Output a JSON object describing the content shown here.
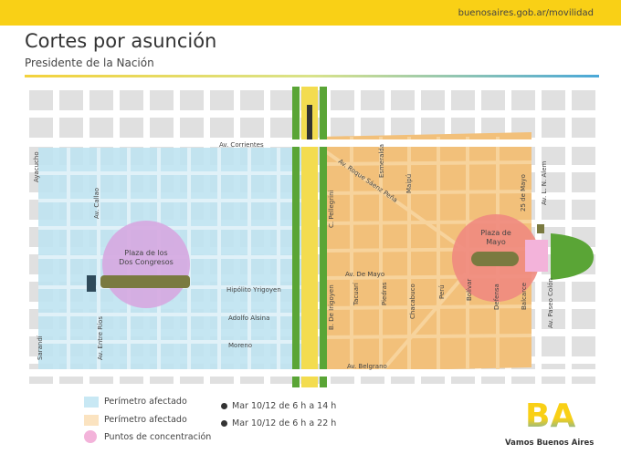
{
  "header": {
    "url": "buenosaires.gob.ar/movilidad",
    "title": "Cortes por asunción",
    "subtitle": "Presidente de la Nación"
  },
  "map": {
    "streets": {
      "corrientes": "Av. Corrientes",
      "ayacucho": "Ayacucho",
      "callao": "Av. Callao",
      "sarandi": "Sarandí",
      "entre_rios": "Av. Entre Ríos",
      "yrigoyen": "Hipólito Yrigoyen",
      "alsina": "Adolfo Alsina",
      "moreno": "Moreno",
      "saenz_pena": "Av. Roque Sáenz Peña",
      "esmeralda": "Esmeralda",
      "maipu": "Maipú",
      "pellegrini": "C. Pellegrini",
      "de_mayo": "Av. De Mayo",
      "de_irigoyen": "B. De Irigoyen",
      "tacuari": "Tacuarí",
      "piedras": "Piedras",
      "chacabuco": "Chacabuco",
      "peru": "Perú",
      "bolivar": "Bolívar",
      "defensa": "Defensa",
      "balcarce": "Balcarce",
      "veinticinco_mayo": "25 de Mayo",
      "alem": "Av. L. N. Alem",
      "paseo_colon": "Av. Paseo Colón",
      "belgrano": "Av. Belgrano"
    },
    "places": {
      "congreso_1": "Plaza de los",
      "congreso_2": "Dos Congresos",
      "mayo_1": "Plaza de",
      "mayo_2": "Mayo"
    },
    "colors": {
      "blue_zone": "#bfe3f1",
      "orange_zone": "#f2c07a",
      "concentration": "#e88fc4",
      "plaza_mayo": "#f08a80",
      "avenue": "#f3dc4f",
      "green": "#5aa536",
      "road": "#ffffff",
      "block": "#dedede"
    }
  },
  "legend": [
    {
      "label": "Perímetro afectado",
      "color": "#c8e8f4",
      "time": "Mar 10/12 de 6 h a 14 h"
    },
    {
      "label": "Perímetro afectado",
      "color": "#fbe3c0",
      "time": "Mar 10/12 de 6 h a 22 h"
    },
    {
      "label": "Puntos de concentración",
      "color": "#f3b3da"
    }
  ],
  "logo": {
    "text": "Vamos Buenos Aires",
    "letters": "BA"
  }
}
